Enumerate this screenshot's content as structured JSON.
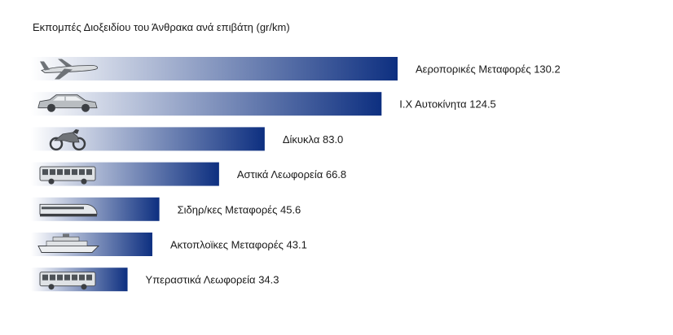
{
  "chart_data": {
    "type": "bar",
    "orientation": "horizontal",
    "title": "Εκπομπές Διοξειδίου του Άνθρακα ανά επιβάτη (gr/km)",
    "categories": [
      "Αεροπορικές Μεταφορές",
      "Ι.Χ Αυτοκίνητα",
      "Δίκυκλα",
      "Αστικά Λεωφορεία",
      "Σιδηρ/κες Μεταφορές",
      "Ακτοπλοϊκες Μεταφορές",
      "Υπεραστικά Λεωφορεία"
    ],
    "values": [
      130.2,
      124.5,
      83.0,
      66.8,
      45.6,
      43.1,
      34.3
    ],
    "value_labels": [
      "130.2",
      "124.5",
      "83.0",
      "66.8",
      "45.6",
      "43.1",
      "34.3"
    ],
    "icons": [
      "airplane-icon",
      "car-icon",
      "motorcycle-icon",
      "city-bus-icon",
      "train-icon",
      "ship-icon",
      "coach-bus-icon"
    ],
    "bar_gradient": [
      "#ffffff",
      "#0d2f80"
    ],
    "grid": false,
    "legend": "none"
  }
}
